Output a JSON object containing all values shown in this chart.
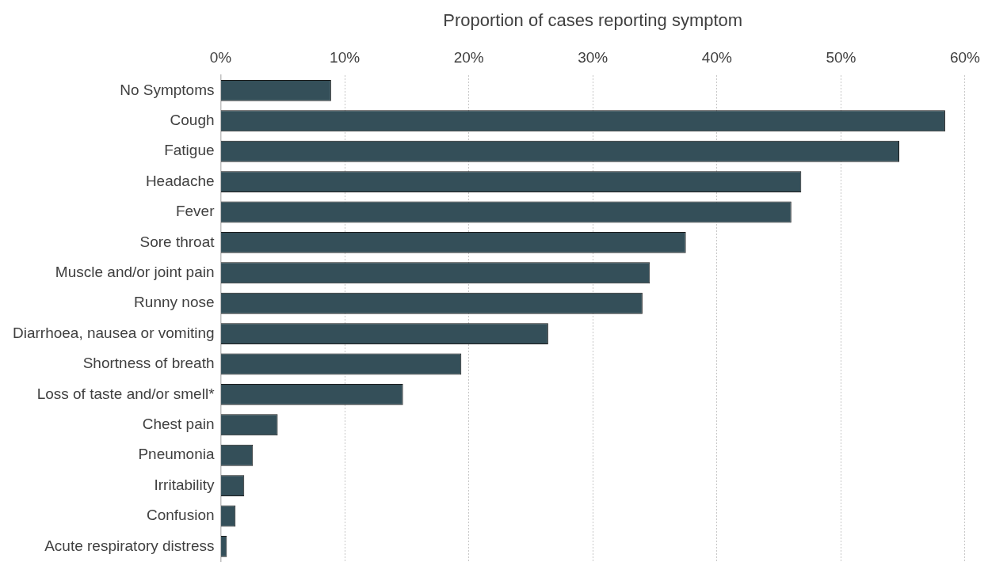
{
  "chart_data": {
    "type": "bar",
    "orientation": "horizontal",
    "xlabel": "Proportion of cases reporting symptom",
    "categories": [
      "No Symptoms",
      "Cough",
      "Fatigue",
      "Headache",
      "Fever",
      "Sore throat",
      "Muscle and/or joint pain",
      "Runny nose",
      "Diarrhoea, nausea or vomiting",
      "Shortness of breath",
      "Loss of taste and/or smell*",
      "Chest pain",
      "Pneumonia",
      "Irritability",
      "Confusion",
      "Acute respiratory distress"
    ],
    "values": [
      8.9,
      58.4,
      54.7,
      46.8,
      46.0,
      37.5,
      34.6,
      34.0,
      26.4,
      19.4,
      14.7,
      4.6,
      2.6,
      1.9,
      1.2,
      0.5
    ],
    "color": "#344f59",
    "xlim": [
      0,
      60
    ],
    "xticks": [
      {
        "value": 0,
        "label": "0%"
      },
      {
        "value": 10,
        "label": "10%"
      },
      {
        "value": 20,
        "label": "20%"
      },
      {
        "value": 30,
        "label": "30%"
      },
      {
        "value": 40,
        "label": "40%"
      },
      {
        "value": 50,
        "label": "50%"
      },
      {
        "value": 60,
        "label": "60%"
      }
    ],
    "grid": "x",
    "legend": false
  }
}
